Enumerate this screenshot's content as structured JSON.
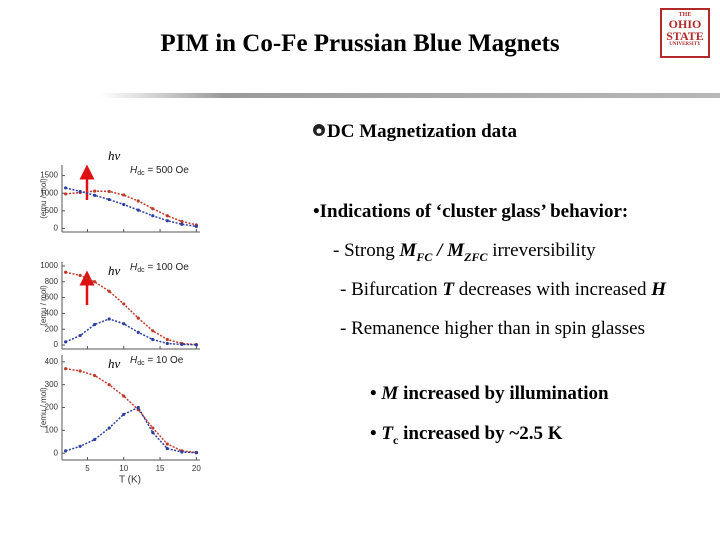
{
  "header": {
    "title": "PIM in Co-Fe Prussian Blue Magnets",
    "logo": [
      "THE",
      "OHIO",
      "STATE",
      "UNIVERSITY"
    ]
  },
  "figure": {
    "x_label": "T (K)",
    "xlim": [
      1.5,
      20.5
    ],
    "xticks": [
      5,
      10,
      15,
      20
    ],
    "x": [
      2,
      4,
      6,
      8,
      10,
      12,
      14,
      16,
      18,
      20
    ],
    "panels": [
      {
        "y_label": "(emu / mol)",
        "light": "hν",
        "field": [
          "H",
          "dc",
          " = 500 Oe"
        ],
        "ylim": [
          -100,
          1800
        ],
        "yticks": [
          0,
          500,
          1000,
          1500
        ],
        "series": [
          {
            "color": "#c0392b",
            "values": [
              980,
              1020,
              1060,
              1050,
              950,
              780,
              560,
              360,
              200,
              100
            ]
          },
          {
            "color": "#2c3e9e",
            "values": [
              1150,
              1050,
              940,
              820,
              680,
              520,
              360,
              220,
              120,
              60
            ]
          }
        ]
      },
      {
        "y_label": "(emu / mol)",
        "light": "hν",
        "field": [
          "H",
          "dc",
          " = 100 Oe"
        ],
        "ylim": [
          -50,
          1050
        ],
        "yticks": [
          0,
          200,
          400,
          600,
          800,
          1000
        ],
        "series": [
          {
            "color": "#c0392b",
            "values": [
              920,
              880,
              800,
              680,
              520,
              340,
              180,
              70,
              20,
              5
            ]
          },
          {
            "color": "#2c3e9e",
            "values": [
              40,
              120,
              260,
              330,
              270,
              160,
              70,
              20,
              8,
              3
            ]
          }
        ]
      },
      {
        "y_label": "(emu / mol)",
        "light": "hν",
        "field": [
          "H",
          "dc",
          " = 10 Oe"
        ],
        "ylim": [
          -30,
          430
        ],
        "yticks": [
          0,
          100,
          200,
          300,
          400
        ],
        "series": [
          {
            "color": "#c0392b",
            "values": [
              370,
              360,
              340,
              300,
              250,
              190,
              110,
              40,
              10,
              3
            ]
          },
          {
            "color": "#2c3e9e",
            "values": [
              10,
              30,
              60,
              110,
              170,
              200,
              90,
              20,
              5,
              2
            ]
          }
        ]
      }
    ]
  },
  "bullets": [
    [
      "DC Magnetization data"
    ],
    [
      "•Indications of ‘cluster glass’ behavior:"
    ],
    [
      "- Strong ",
      "M",
      "FC",
      " / ",
      "M",
      "ZFC",
      " irreversibility"
    ],
    [
      "- Bifurcation ",
      "T",
      " decreases with increased ",
      "H"
    ],
    [
      "- Remanence higher than in spin glasses"
    ],
    [
      "• ",
      "M",
      " increased by illumination"
    ],
    [
      "• ",
      "T",
      "c",
      " increased by ~2.5 K"
    ]
  ]
}
